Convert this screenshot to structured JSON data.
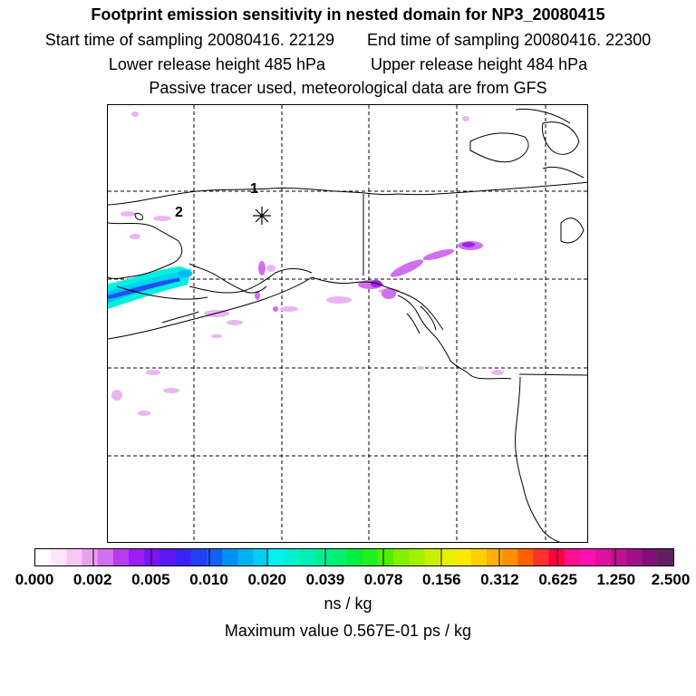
{
  "title": "Footprint emission sensitivity in nested domain for NP3_20080415",
  "start_label": "Start time of sampling 20080416. 22129",
  "end_label": "End time of sampling 20080416. 22300",
  "lower_label": "Lower release height  485 hPa",
  "upper_label": "Upper release height  484 hPa",
  "tracer_label": "Passive tracer used, meteorological data are from GFS",
  "markers": {
    "m1": "1",
    "m2": "2"
  },
  "colorbar": {
    "ticks": [
      "0.000",
      "0.002",
      "0.005",
      "0.010",
      "0.020",
      "0.039",
      "0.078",
      "0.156",
      "0.312",
      "0.625",
      "1.250",
      "2.500"
    ],
    "colors": [
      "#ffffff",
      "#fde6fd",
      "#f5c8f5",
      "#e8a0ef",
      "#d070ee",
      "#b73cf0",
      "#9a1ef5",
      "#7a14f5",
      "#5a18f5",
      "#3a24f5",
      "#2040f5",
      "#1060f5",
      "#0090f5",
      "#00b0f0",
      "#00d0f0",
      "#00f0f0",
      "#00f0d0",
      "#00f0b0",
      "#00f090",
      "#00f070",
      "#00f040",
      "#20f020",
      "#50f000",
      "#80f000",
      "#a0f000",
      "#c8f000",
      "#e8f000",
      "#ffe800",
      "#ffd000",
      "#ffb000",
      "#ff9000",
      "#ff6000",
      "#ff3030",
      "#ff0040",
      "#ff1090",
      "#ff10b0",
      "#e010a0",
      "#c01090",
      "#a01088",
      "#801078",
      "#602060"
    ]
  },
  "units": "ns / kg",
  "max_value": "Maximum value  0.567E-01 ps / kg"
}
